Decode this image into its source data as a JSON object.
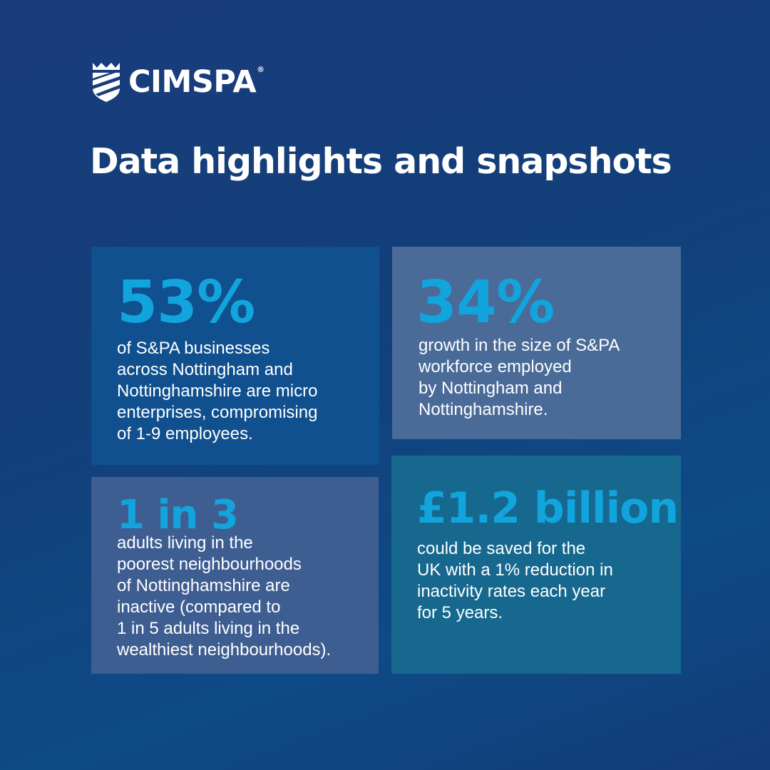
{
  "brand": {
    "logo_icon": "shield-stripes-icon",
    "name": "CIMSPA",
    "registered": "®"
  },
  "title": "Data highlights and snapshots",
  "highlights": [
    {
      "stat": "53%",
      "lines": [
        "of S&PA businesses",
        "across Nottingham and",
        "Nottinghamshire are micro",
        "enterprises, compromising",
        "of 1-9 employees."
      ]
    },
    {
      "stat": "34%",
      "lines": [
        "growth in the size of S&PA",
        "workforce employed",
        "by Nottingham and",
        "Nottinghamshire."
      ]
    },
    {
      "stat": "1 in 3",
      "lines": [
        "adults living in the",
        "poorest neighbourhoods",
        "of Nottinghamshire are",
        "inactive (compared to",
        "1 in 5 adults living in the",
        "wealthiest neighbourhoods)."
      ]
    },
    {
      "stat": "£1.2 billion",
      "lines": [
        "could be saved for the",
        "UK with a 1% reduction in",
        "inactivity rates each year",
        "for 5 years."
      ]
    }
  ],
  "colors": {
    "accent": "#12a4dc",
    "text": "#ffffff"
  }
}
